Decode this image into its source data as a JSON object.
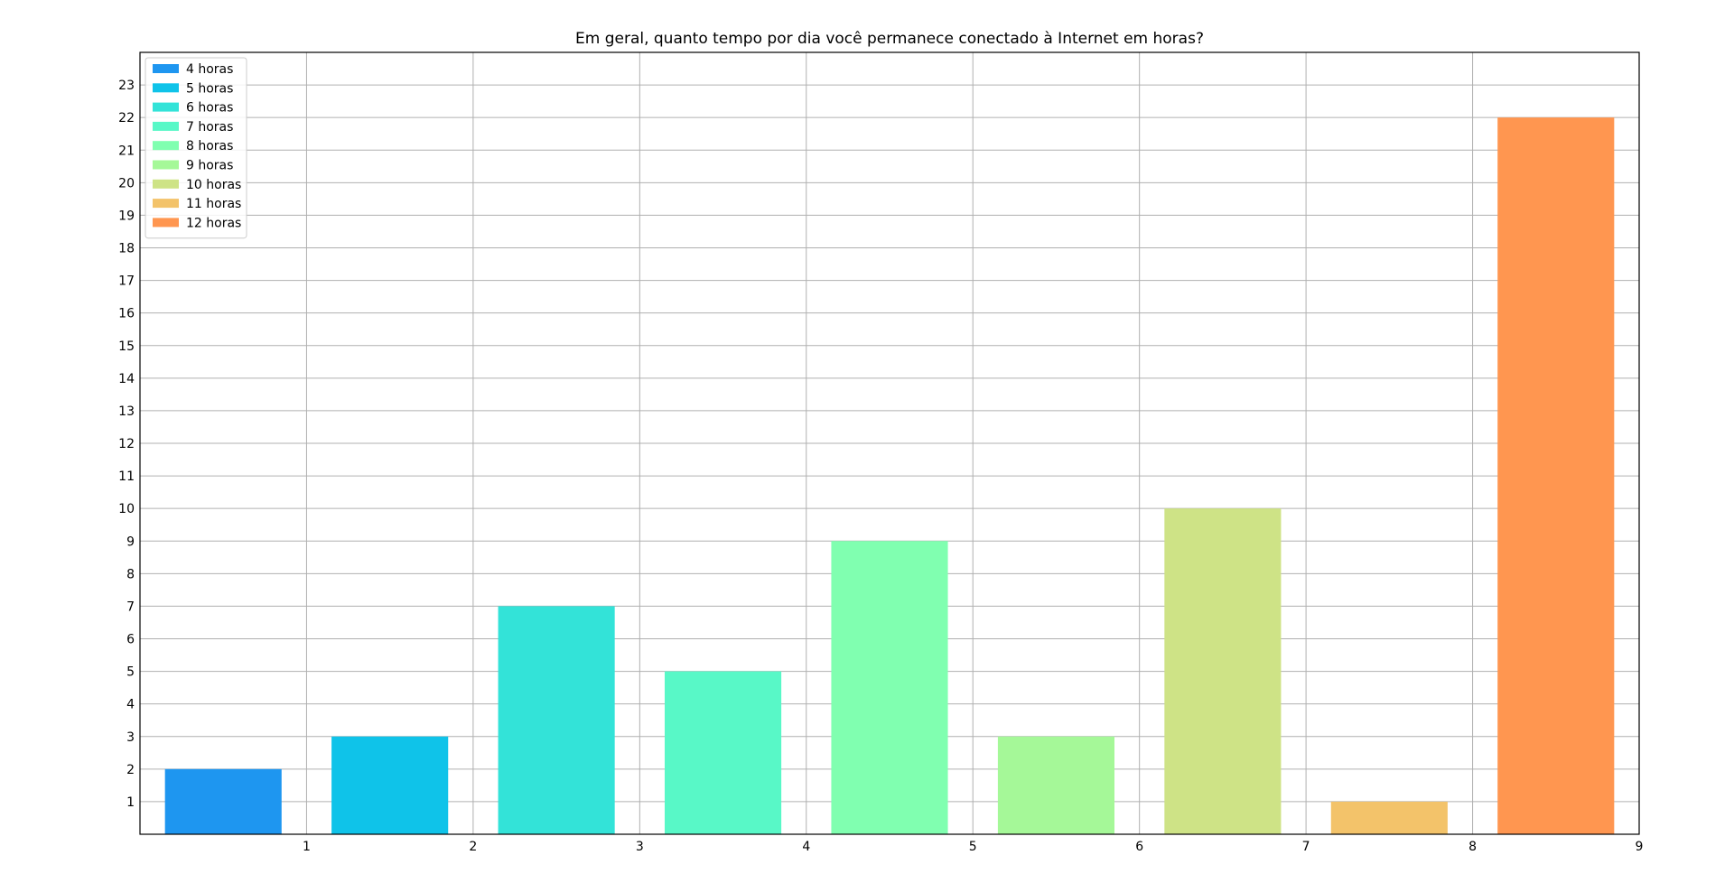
{
  "chart_data": {
    "type": "bar",
    "title": "Em geral, quanto tempo por dia você permanece conectado à Internet em horas?",
    "xlabel": "",
    "ylabel": "",
    "xlim": [
      0,
      9
    ],
    "ylim": [
      0,
      24
    ],
    "x_ticks": [
      1,
      2,
      3,
      4,
      5,
      6,
      7,
      8,
      9
    ],
    "y_ticks": [
      1,
      2,
      3,
      4,
      5,
      6,
      7,
      8,
      9,
      10,
      11,
      12,
      13,
      14,
      15,
      16,
      17,
      18,
      19,
      20,
      21,
      22,
      23
    ],
    "grid": true,
    "legend_position": "top-left",
    "series": [
      {
        "name": "4 horas",
        "x": 0.5,
        "value": 2,
        "color": "#1e96f0"
      },
      {
        "name": "5 horas",
        "x": 1.5,
        "value": 3,
        "color": "#0fc3e9"
      },
      {
        "name": "6 horas",
        "x": 2.5,
        "value": 7,
        "color": "#33e3d8"
      },
      {
        "name": "7 horas",
        "x": 3.5,
        "value": 5,
        "color": "#58f8c7"
      },
      {
        "name": "8 horas",
        "x": 4.5,
        "value": 9,
        "color": "#80ffb0"
      },
      {
        "name": "9 horas",
        "x": 5.5,
        "value": 3,
        "color": "#a5f898"
      },
      {
        "name": "10 horas",
        "x": 6.5,
        "value": 10,
        "color": "#cee386"
      },
      {
        "name": "11 horas",
        "x": 7.5,
        "value": 1,
        "color": "#f3c36a"
      },
      {
        "name": "12 horas",
        "x": 8.5,
        "value": 22,
        "color": "#ff9650"
      }
    ]
  }
}
